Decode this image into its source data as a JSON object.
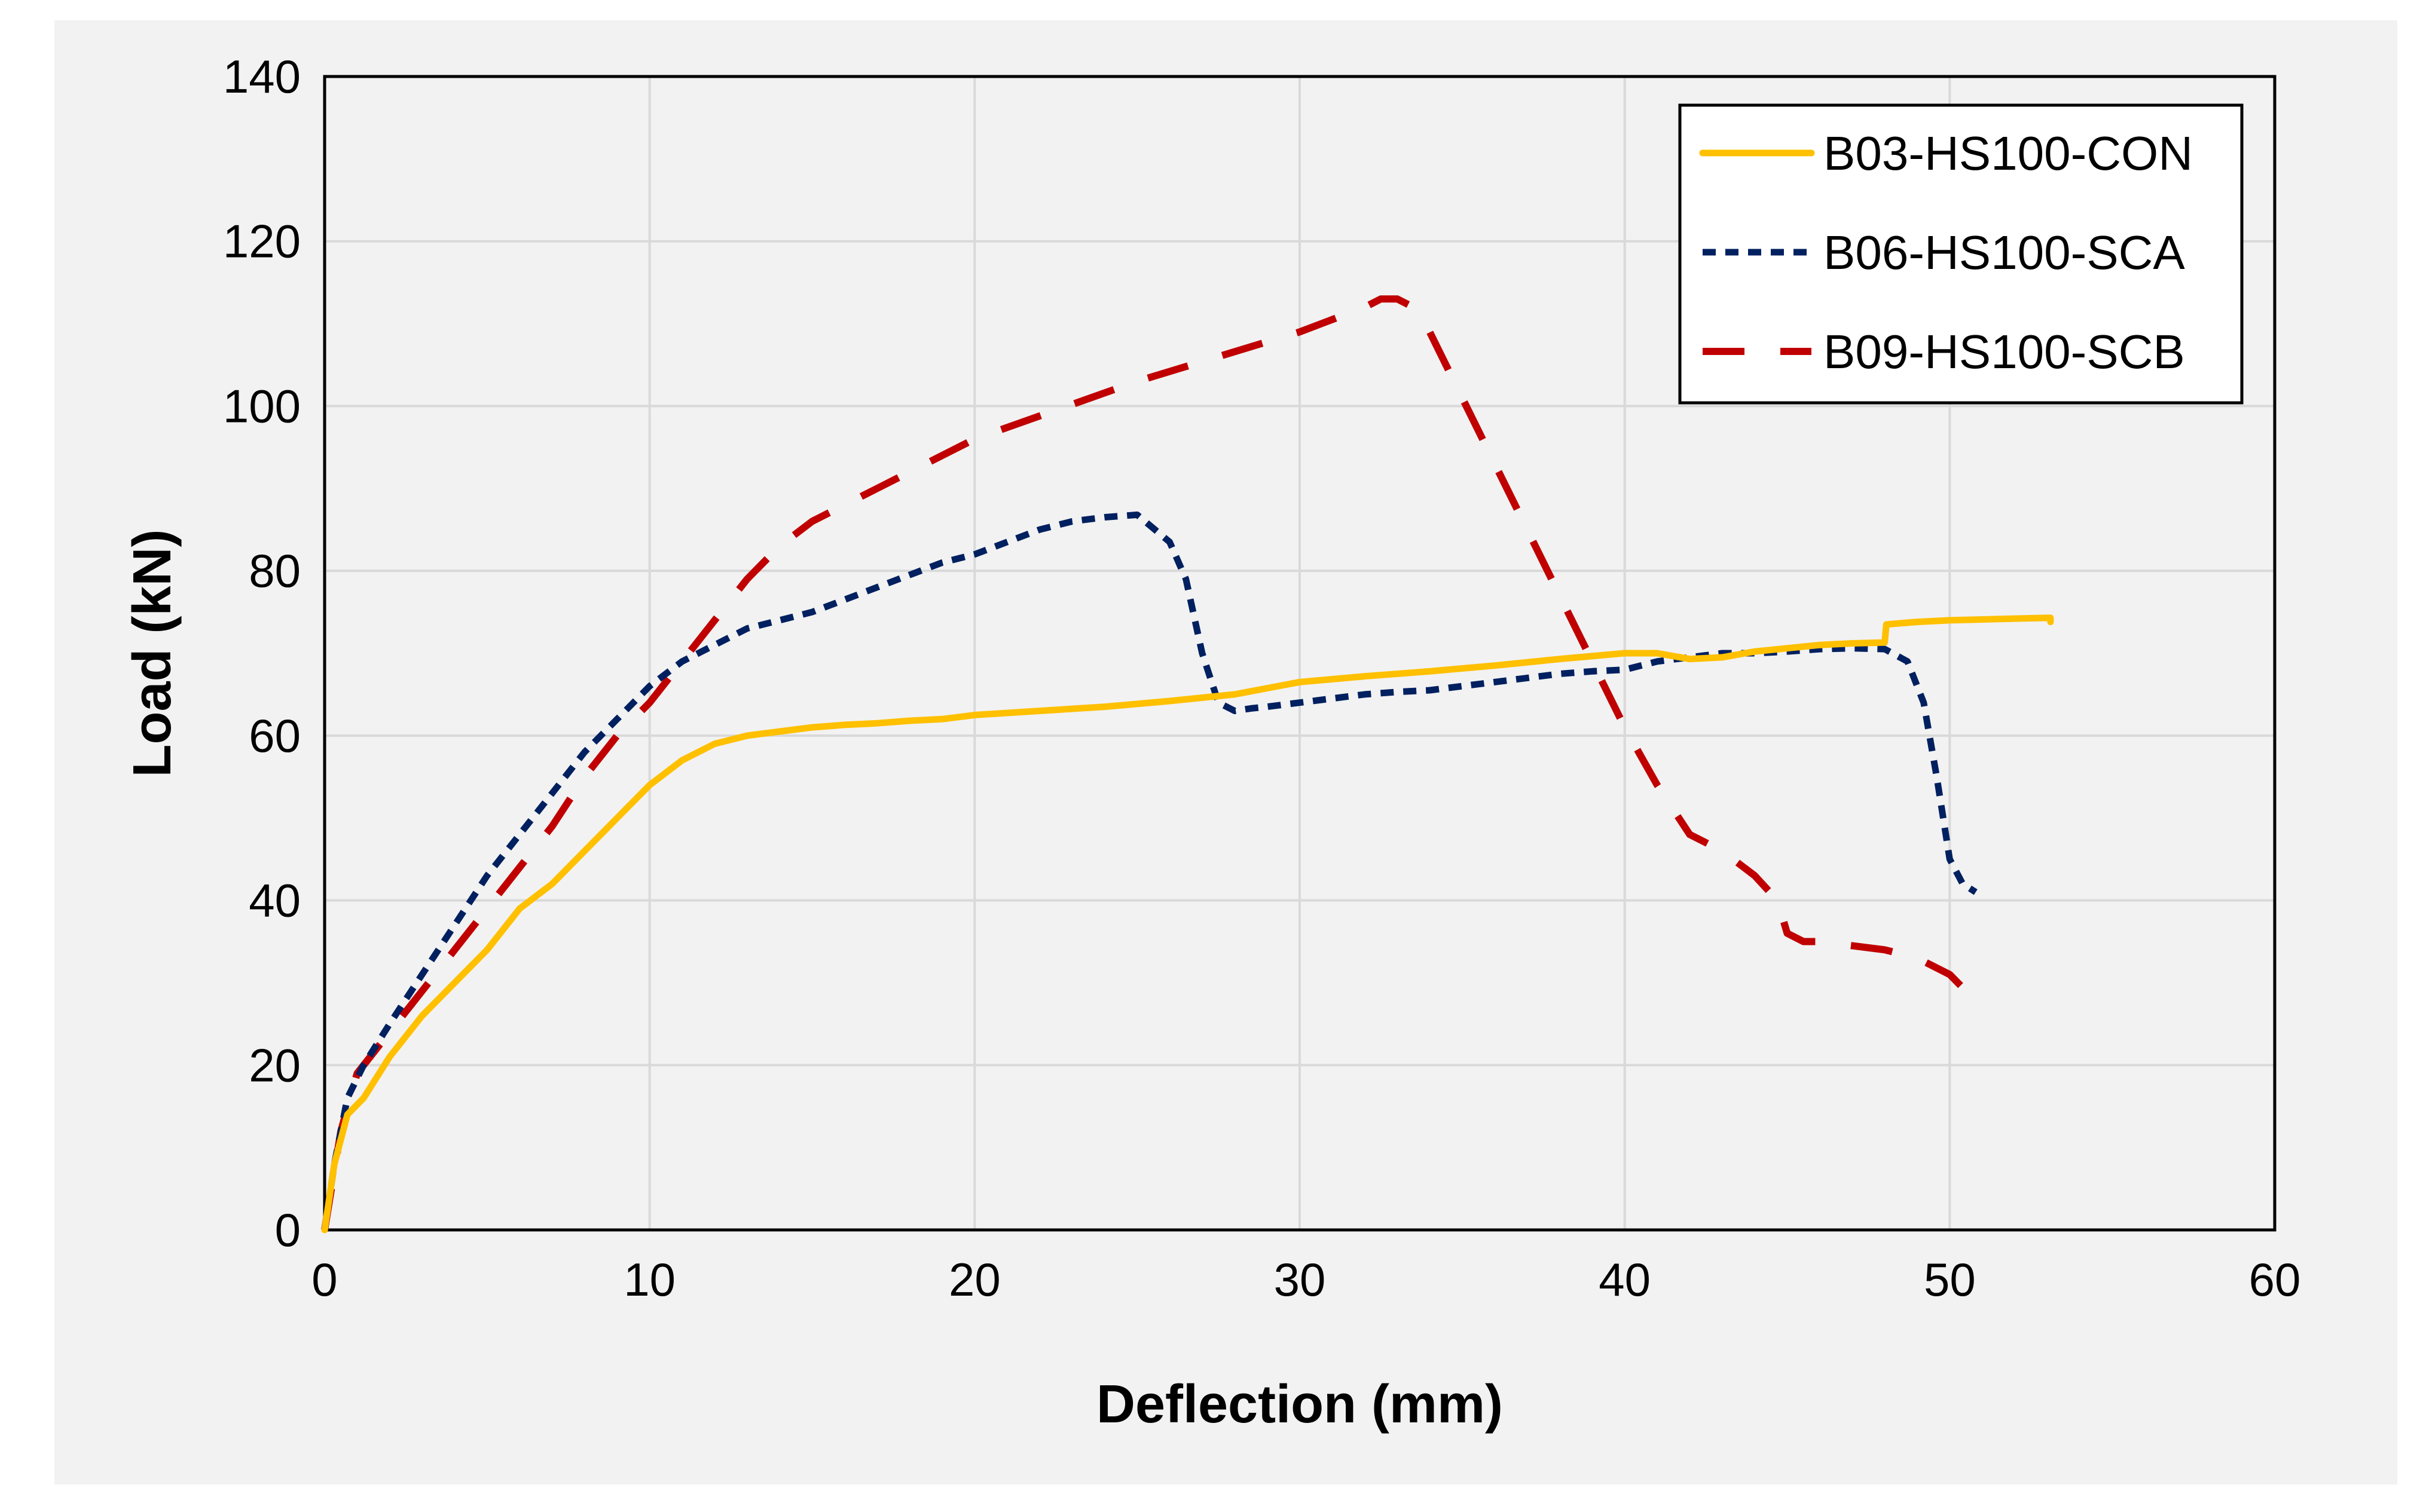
{
  "chart_data": {
    "type": "line",
    "title": "",
    "xlabel": "Deflection (mm)",
    "ylabel": "Load (kN)",
    "xlim": [
      0,
      60
    ],
    "ylim": [
      0,
      140
    ],
    "xticks": [
      0,
      10,
      20,
      30,
      40,
      50,
      60
    ],
    "yticks": [
      0,
      20,
      40,
      60,
      80,
      100,
      120,
      140
    ],
    "xtick_labels": [
      "0",
      "10",
      "20",
      "30",
      "40",
      "50",
      "60"
    ],
    "ytick_labels": [
      "0",
      "20",
      "40",
      "60",
      "80",
      "100",
      "120",
      "140"
    ],
    "grid": true,
    "legend_position": "top-right",
    "series": [
      {
        "name": "B03-HS100-CON",
        "style": "solid",
        "color": "#FFC000",
        "x": [
          0,
          0.3,
          0.7,
          1.2,
          2,
          3,
          4,
          5,
          6,
          7,
          8,
          9,
          10,
          11,
          12,
          13,
          14,
          15,
          16,
          17,
          18,
          19,
          20,
          22,
          24,
          26,
          28,
          30,
          32,
          34,
          36,
          38,
          40,
          41,
          42,
          43,
          44,
          45,
          46,
          47,
          48,
          48.05,
          49,
          50,
          51,
          52,
          53.1,
          53.1
        ],
        "y": [
          0,
          8,
          14,
          16,
          21,
          26,
          30,
          34,
          39,
          42,
          46,
          50,
          54,
          57,
          59,
          60,
          60.5,
          61,
          61.3,
          61.5,
          61.8,
          62,
          62.5,
          63,
          63.5,
          64.2,
          65,
          66.5,
          67.2,
          67.8,
          68.5,
          69.3,
          70,
          70,
          69.3,
          69.5,
          70.2,
          70.6,
          71,
          71.2,
          71.3,
          73.5,
          73.8,
          74,
          74.1,
          74.2,
          74.3,
          73.8
        ]
      },
      {
        "name": "B06-HS100-SCA",
        "style": "dotted",
        "color": "#002060",
        "x": [
          0,
          0.3,
          0.7,
          1.2,
          2,
          3,
          4,
          5,
          6,
          7,
          8,
          9,
          10,
          11,
          12,
          13,
          14,
          15,
          16,
          17,
          18,
          19,
          20,
          21,
          22,
          23,
          24,
          25,
          26,
          26.5,
          27,
          27.5,
          28,
          28.5,
          29,
          30,
          31,
          32,
          33,
          34,
          35,
          36,
          37,
          38,
          39,
          40,
          41,
          42,
          43,
          44,
          45,
          46,
          47,
          48,
          48.7,
          49.2,
          49.6,
          50,
          50.4,
          50.8
        ],
        "y": [
          0,
          8,
          16,
          20,
          25,
          31,
          37,
          43,
          48,
          53,
          58,
          62,
          66,
          69,
          71,
          73,
          74,
          75,
          76.5,
          78,
          79.5,
          81,
          82,
          83.5,
          85,
          86,
          86.5,
          86.8,
          83.5,
          79,
          70,
          64,
          63,
          63.3,
          63.5,
          64,
          64.5,
          65,
          65.3,
          65.5,
          66,
          66.5,
          67,
          67.5,
          67.8,
          68,
          69,
          69.5,
          70,
          70,
          70.2,
          70.5,
          70.6,
          70.5,
          69,
          64,
          55,
          45,
          42,
          41
        ]
      },
      {
        "name": "B09-HS100-SCB",
        "style": "dashed",
        "color": "#C00000",
        "x": [
          0,
          0.5,
          1,
          2,
          3,
          4,
          5,
          6,
          7,
          8,
          9,
          10,
          11,
          12,
          13,
          14,
          15,
          17,
          20,
          25,
          30,
          31,
          32,
          32.5,
          33,
          33.5,
          34,
          35,
          36,
          37,
          38,
          39,
          40,
          41,
          42,
          43,
          44,
          44.7,
          45,
          45.5,
          46,
          47,
          48,
          49,
          50,
          50.5,
          51
        ],
        "y": [
          0,
          12,
          19,
          24,
          29,
          34,
          39,
          44,
          49,
          55,
          60,
          64,
          69,
          74,
          79,
          83,
          86,
          90,
          96,
          103,
          109,
          110.5,
          112,
          113,
          113,
          112,
          109,
          101,
          93,
          85,
          77,
          69,
          61,
          54,
          48,
          46,
          43,
          40,
          36,
          35,
          35,
          34.5,
          34,
          33,
          31,
          29,
          28
        ]
      }
    ]
  }
}
